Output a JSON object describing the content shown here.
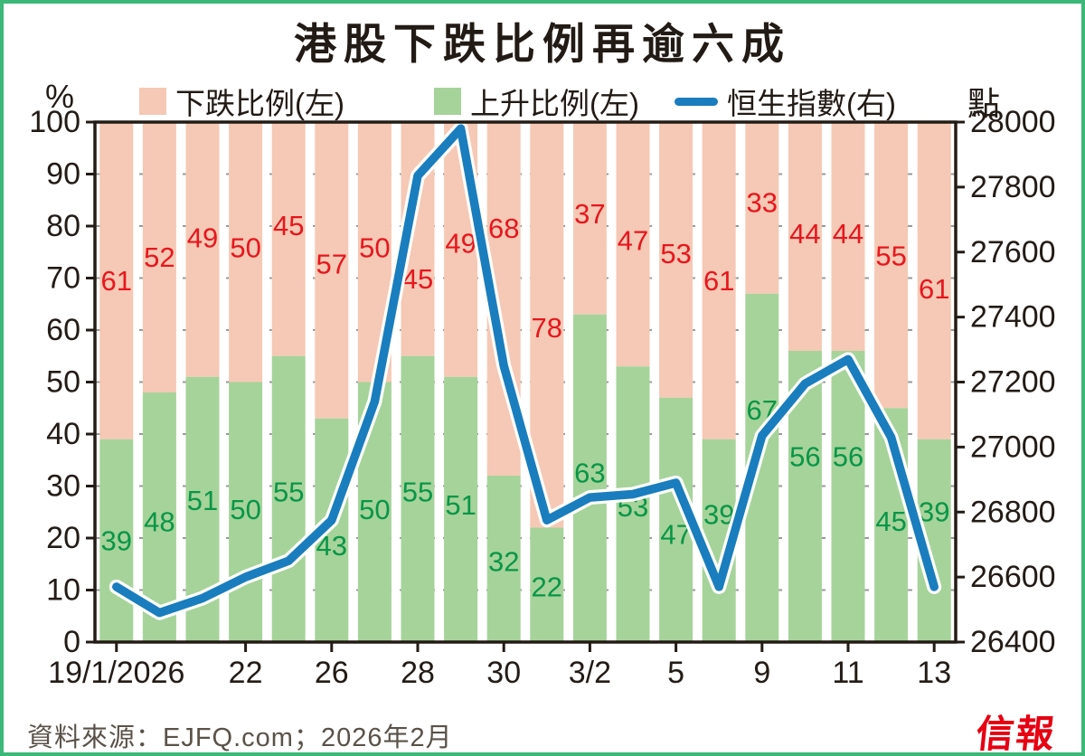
{
  "title": "港股下跌比例再逾六成",
  "legend": {
    "unit_left": "%",
    "unit_right": "點",
    "items": [
      {
        "label": "下跌比例(左)",
        "type": "square",
        "color": "#F5C9B5"
      },
      {
        "label": "上升比例(左)",
        "type": "square",
        "color": "#A6D39A"
      },
      {
        "label": "恒生指數(右)",
        "type": "line",
        "color": "#1A7DBE"
      }
    ]
  },
  "chart_data": {
    "type": "bar",
    "subtype": "stacked-bars-with-line",
    "x_tick_labels": [
      "19/1/2026",
      "22",
      "26",
      "28",
      "30",
      "3/2",
      "5",
      "9",
      "11",
      "13"
    ],
    "x_tick_bar_index": [
      0,
      3,
      5,
      7,
      9,
      11,
      13,
      15,
      17,
      19
    ],
    "series": [
      {
        "name": "下跌比例(左)",
        "type": "bar",
        "axis": "left",
        "color": "#F5C9B5",
        "label_color": "#E8161E",
        "values": [
          61,
          52,
          49,
          50,
          45,
          57,
          50,
          45,
          49,
          68,
          78,
          37,
          47,
          53,
          61,
          33,
          44,
          44,
          55,
          61
        ]
      },
      {
        "name": "上升比例(左)",
        "type": "bar",
        "axis": "left",
        "color": "#A6D39A",
        "label_color": "#089647",
        "values": [
          39,
          48,
          51,
          50,
          55,
          43,
          50,
          55,
          51,
          32,
          22,
          63,
          53,
          47,
          39,
          67,
          56,
          56,
          45,
          39
        ]
      },
      {
        "name": "恒生指數(右)",
        "type": "line",
        "axis": "right",
        "color": "#1A7DBE",
        "values": [
          26570,
          26490,
          26535,
          26600,
          26650,
          26775,
          27140,
          27835,
          27980,
          27250,
          26775,
          26845,
          26855,
          26890,
          26570,
          27035,
          27195,
          27270,
          27030,
          26570
        ]
      }
    ],
    "left_axis": {
      "label": "%",
      "ticks": [
        0,
        10,
        20,
        30,
        40,
        50,
        60,
        70,
        80,
        90,
        100
      ],
      "range": [
        0,
        100
      ]
    },
    "right_axis": {
      "label": "點",
      "ticks": [
        26400,
        26600,
        26800,
        27000,
        27200,
        27400,
        27600,
        27800,
        28000
      ],
      "range": [
        26400,
        28000
      ]
    },
    "grid": "horizontal-dashed",
    "legend_position": "top"
  },
  "footer": {
    "source": "資料來源：EJFQ.com；2026年2月",
    "logo": "信報"
  },
  "colors": {
    "frame": "#3CB878",
    "bar_down": "#F5C9B5",
    "bar_up": "#A6D39A",
    "hsi_line": "#1A7DBE",
    "label_down": "#E8161E",
    "label_up": "#089647",
    "axis": "#231B15",
    "gridline": "#9A9A9A",
    "source_text": "#5A5248",
    "logo_red": "#E60012"
  }
}
